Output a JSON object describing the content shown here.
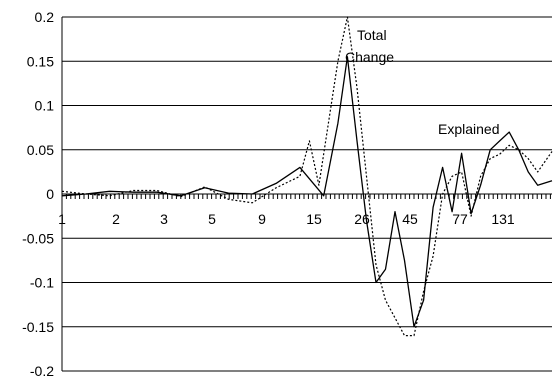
{
  "chart_data": {
    "type": "line",
    "ylim": [
      -0.2,
      0.2
    ],
    "y_ticks": [
      "0.2",
      "0.15",
      "0.1",
      "0.05",
      "0",
      "-0.05",
      "-0.1",
      "-0.15",
      "-0.2"
    ],
    "y_tick_values": [
      0.2,
      0.15,
      0.1,
      0.05,
      0,
      -0.05,
      -0.1,
      -0.15,
      -0.2
    ],
    "x_ticks": [
      "1",
      "2",
      "3",
      "5",
      "9",
      "15",
      "26",
      "45",
      "77",
      "131"
    ],
    "grid": "horizontal",
    "annotations": [
      "Total",
      "Change",
      "Explained"
    ],
    "series": [
      {
        "style": "solid",
        "color": "#000000",
        "x": [
          0,
          0.5,
          1,
          1.5,
          2,
          2.5,
          3,
          3.5,
          4,
          4.5,
          5,
          5.5,
          5.8,
          6,
          6.2,
          6.4,
          6.6,
          6.8,
          7,
          7.2,
          7.4,
          7.6,
          7.8,
          8,
          8.2,
          8.4,
          8.6,
          8.8,
          9,
          9.2,
          9.4,
          9.6,
          9.8,
          10,
          10.3
        ],
        "values": [
          -0.002,
          0,
          0.003,
          0.002,
          0.002,
          -0.002,
          0.007,
          0.001,
          0,
          0.012,
          0.03,
          -0.002,
          0.08,
          0.155,
          0.06,
          -0.03,
          -0.1,
          -0.085,
          -0.02,
          -0.075,
          -0.15,
          -0.12,
          -0.015,
          0.03,
          -0.02,
          0.046,
          -0.022,
          0.01,
          0.05,
          0.06,
          0.07,
          0.05,
          0.025,
          0.01,
          0.015
        ]
      },
      {
        "style": "dotted",
        "color": "#000000",
        "x": [
          0,
          0.5,
          1,
          1.5,
          2,
          2.5,
          3,
          3.5,
          4,
          4.5,
          5,
          5.2,
          5.4,
          5.6,
          5.8,
          6,
          6.2,
          6.4,
          6.6,
          6.8,
          7,
          7.2,
          7.4,
          7.6,
          7.8,
          8,
          8.2,
          8.4,
          8.6,
          8.8,
          9,
          9.2,
          9.4,
          9.6,
          9.8,
          10,
          10.3
        ],
        "values": [
          0.003,
          0,
          -0.002,
          0.004,
          0.004,
          -0.003,
          0.008,
          -0.006,
          -0.01,
          0.007,
          0.02,
          0.06,
          0.01,
          0.08,
          0.15,
          0.2,
          0.12,
          0.02,
          -0.08,
          -0.12,
          -0.14,
          -0.16,
          -0.16,
          -0.11,
          -0.07,
          0,
          0.02,
          0.025,
          -0.025,
          0.02,
          0.04,
          0.045,
          0.055,
          0.05,
          0.04,
          0.025,
          0.048
        ]
      }
    ],
    "xlim": [
      0,
      10.3
    ]
  }
}
